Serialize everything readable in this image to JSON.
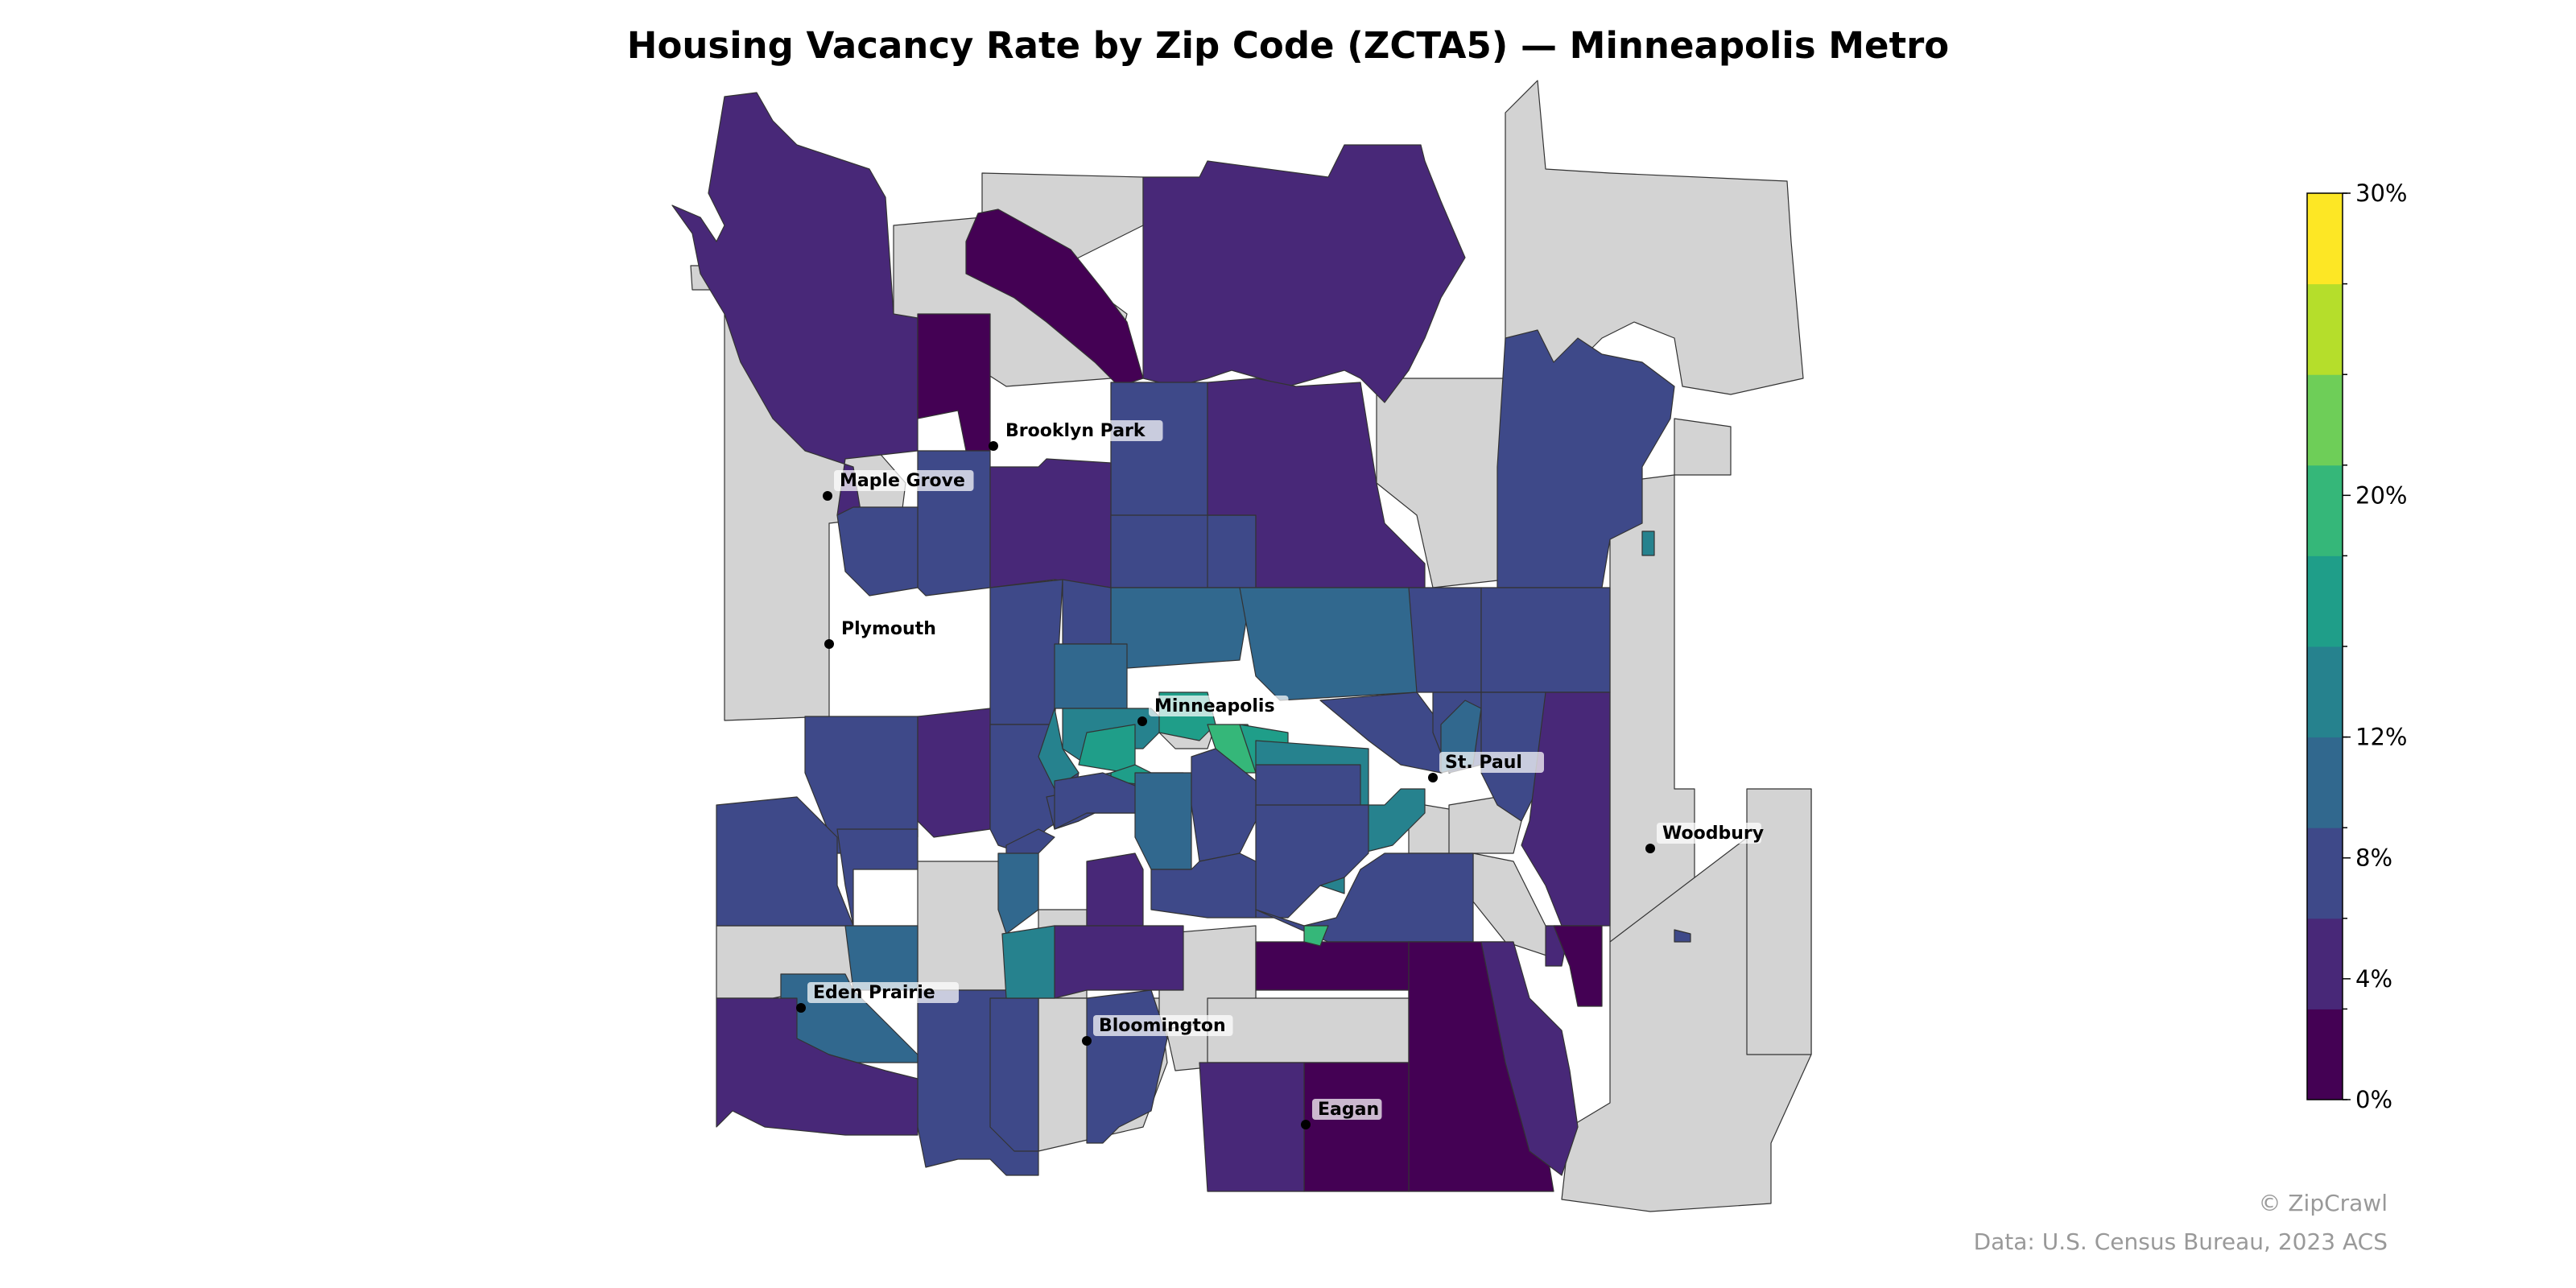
{
  "map": {
    "title": "Housing Vacancy Rate by Zip Code (ZCTA5) — Minneapolis Metro",
    "colors": {
      "no_data": "#d3d3d3",
      "border": "#333333",
      "outline": "#555555"
    },
    "cities": [
      {
        "name": "Brooklyn Park"
      },
      {
        "name": "Maple Grove"
      },
      {
        "name": "Plymouth"
      },
      {
        "name": "Minneapolis"
      },
      {
        "name": "St. Paul"
      },
      {
        "name": "Woodbury"
      },
      {
        "name": "Eden Prairie"
      },
      {
        "name": "Bloomington"
      },
      {
        "name": "Eagan"
      }
    ]
  },
  "colorbar": {
    "min": 0,
    "max": 30,
    "bins": [
      "#440154",
      "#482878",
      "#3e4989",
      "#31688e",
      "#26828e",
      "#1f9e89",
      "#35b779",
      "#6ece58",
      "#b5de2b",
      "#fde725"
    ],
    "ticks": [
      "0%",
      "4%",
      "8%",
      "12%",
      "20%",
      "30%"
    ],
    "tick_values": [
      0,
      4,
      8,
      12,
      20,
      30
    ]
  },
  "attribution": {
    "copyright": "© ZipCrawl",
    "source": "Data: U.S. Census Bureau, 2023 ACS"
  }
}
